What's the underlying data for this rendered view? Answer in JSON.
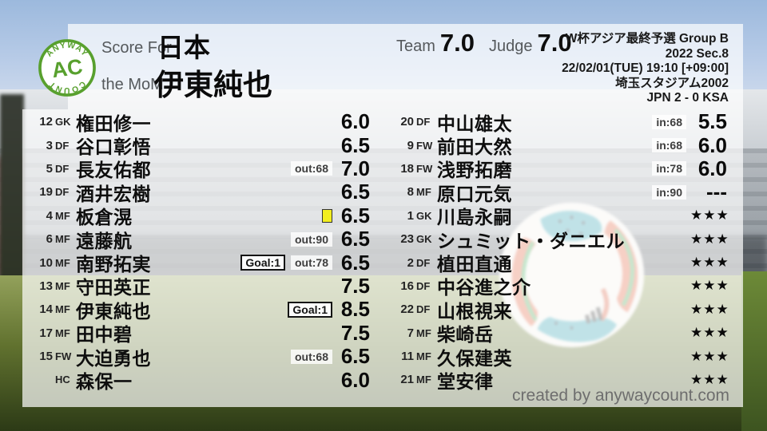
{
  "meta": {
    "created_by": "created by anywaycount.com"
  },
  "logo": {
    "arc_top": "ANYWAY",
    "center": "AC",
    "arc_bottom": "COUNT"
  },
  "colors": {
    "logo_green": "#58a02e",
    "card_yellow": "#f2ee20"
  },
  "header": {
    "score_for_label": "Score For",
    "team_name": "日本",
    "mom_label": "the MoM",
    "mom_name": "伊東純也",
    "team_score_label": "Team",
    "team_score": "7.0",
    "judge_score_label": "Judge",
    "judge_score": "7.0",
    "competition": "W杯アジア最終予選 Group B",
    "season": "2022 Sec.8",
    "datetime": "22/02/01(TUE) 19:10 [+09:00]",
    "venue": "埼玉スタジアム2002",
    "result": "JPN 2 - 0 KSA"
  },
  "roster": {
    "left": [
      {
        "num": "12",
        "pos": "GK",
        "name": "権田修一",
        "rating": "6.0"
      },
      {
        "num": "3",
        "pos": "DF",
        "name": "谷口彰悟",
        "rating": "6.5"
      },
      {
        "num": "5",
        "pos": "DF",
        "name": "長友佑都",
        "rating": "7.0",
        "sub": "out:68"
      },
      {
        "num": "19",
        "pos": "DF",
        "name": "酒井宏樹",
        "rating": "6.5"
      },
      {
        "num": "4",
        "pos": "MF",
        "name": "板倉滉",
        "rating": "6.5",
        "card": true
      },
      {
        "num": "6",
        "pos": "MF",
        "name": "遠藤航",
        "rating": "6.5",
        "sub": "out:90"
      },
      {
        "num": "10",
        "pos": "MF",
        "name": "南野拓実",
        "rating": "6.5",
        "goal": "Goal:1",
        "sub": "out:78"
      },
      {
        "num": "13",
        "pos": "MF",
        "name": "守田英正",
        "rating": "7.5"
      },
      {
        "num": "14",
        "pos": "MF",
        "name": "伊東純也",
        "rating": "8.5",
        "goal": "Goal:1"
      },
      {
        "num": "17",
        "pos": "MF",
        "name": "田中碧",
        "rating": "7.5"
      },
      {
        "num": "15",
        "pos": "FW",
        "name": "大迫勇也",
        "rating": "6.5",
        "sub": "out:68"
      },
      {
        "num": "",
        "pos": "HC",
        "name": "森保一",
        "rating": "6.0"
      }
    ],
    "right": [
      {
        "num": "20",
        "pos": "DF",
        "name": "中山雄太",
        "rating": "5.5",
        "sub": "in:68"
      },
      {
        "num": "9",
        "pos": "FW",
        "name": "前田大然",
        "rating": "6.0",
        "sub": "in:68"
      },
      {
        "num": "18",
        "pos": "FW",
        "name": "浅野拓磨",
        "rating": "6.0",
        "sub": "in:78"
      },
      {
        "num": "8",
        "pos": "MF",
        "name": "原口元気",
        "rating": "---",
        "sub": "in:90"
      },
      {
        "num": "1",
        "pos": "GK",
        "name": "川島永嗣",
        "rating": "★★★"
      },
      {
        "num": "23",
        "pos": "GK",
        "name": "シュミット・ダニエル",
        "rating": "★★★"
      },
      {
        "num": "2",
        "pos": "DF",
        "name": "植田直通",
        "rating": "★★★"
      },
      {
        "num": "16",
        "pos": "DF",
        "name": "中谷進之介",
        "rating": "★★★"
      },
      {
        "num": "22",
        "pos": "DF",
        "name": "山根視来",
        "rating": "★★★"
      },
      {
        "num": "7",
        "pos": "MF",
        "name": "柴崎岳",
        "rating": "★★★"
      },
      {
        "num": "11",
        "pos": "MF",
        "name": "久保建英",
        "rating": "★★★"
      },
      {
        "num": "21",
        "pos": "MF",
        "name": "堂安律",
        "rating": "★★★"
      }
    ]
  }
}
